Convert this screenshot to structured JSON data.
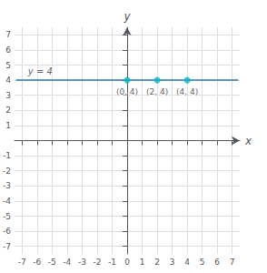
{
  "chart_data": {
    "type": "scatter",
    "xlabel": "x",
    "ylabel": "y",
    "xlim": [
      -7.5,
      7.5
    ],
    "ylim": [
      -7.5,
      7.5
    ],
    "xticks": [
      -7,
      -6,
      -5,
      -4,
      -3,
      -2,
      -1,
      0,
      1,
      2,
      3,
      4,
      5,
      6,
      7
    ],
    "yticks": [
      -7,
      -6,
      -5,
      -4,
      -3,
      -2,
      -1,
      1,
      2,
      3,
      4,
      5,
      6,
      7
    ],
    "grid": true,
    "series": [
      {
        "type": "line",
        "color": "#2e75b6",
        "x": [
          -7.4,
          7.4
        ],
        "values": [
          4,
          4
        ]
      },
      {
        "type": "scatter",
        "color": "#00b8c8",
        "marker": "circle",
        "x": [
          0,
          2,
          4
        ],
        "values": [
          4,
          4,
          4
        ],
        "value_labels": [
          "(0, 4)",
          "(2, 4)",
          "(4, 4)"
        ],
        "data_labels": true
      }
    ],
    "annotations": [
      {
        "text": "y = 4",
        "x": -6.6,
        "y": 4.25
      }
    ]
  }
}
